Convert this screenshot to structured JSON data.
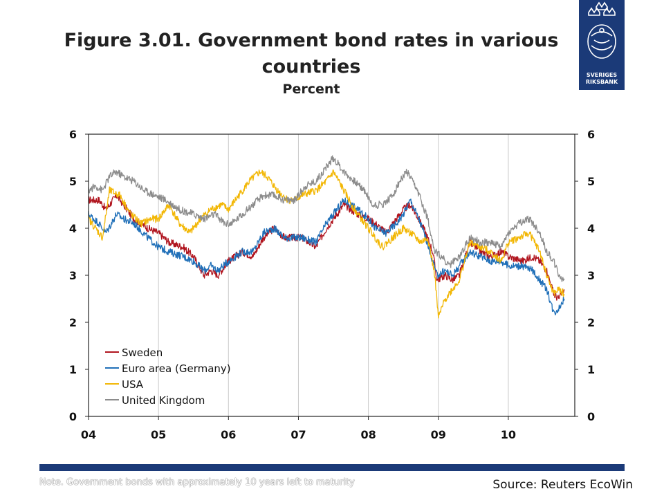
{
  "header": {
    "title": "Figure 3.01. Government bond rates in various countries",
    "subtitle": "Percent"
  },
  "logo": {
    "line1": "SVERIGES",
    "line2": "RIKSBANK"
  },
  "footer": {
    "note": "Note. Government bonds with approximately 10 years left to maturity",
    "source": "Source: Reuters EcoWin"
  },
  "chart_data": {
    "type": "line",
    "ylim": [
      0,
      6
    ],
    "y_ticks": [
      "0",
      "1",
      "2",
      "3",
      "4",
      "5",
      "6"
    ],
    "xlim": [
      2004.0,
      2010.95
    ],
    "x_ticks": [
      {
        "value": 2004,
        "label": "04"
      },
      {
        "value": 2005,
        "label": "05"
      },
      {
        "value": 2006,
        "label": "06"
      },
      {
        "value": 2007,
        "label": "07"
      },
      {
        "value": 2008,
        "label": "08"
      },
      {
        "value": 2009,
        "label": "09"
      },
      {
        "value": 2010,
        "label": "10"
      }
    ],
    "grid": "vertical",
    "legend_position": "bottom-left",
    "series": [
      {
        "name": "Sweden",
        "color": "#b0141e",
        "x": [
          2004.0,
          2004.15,
          2004.25,
          2004.4,
          2004.5,
          2004.65,
          2004.85,
          2005.0,
          2005.15,
          2005.35,
          2005.5,
          2005.65,
          2005.75,
          2005.85,
          2006.0,
          2006.2,
          2006.35,
          2006.5,
          2006.65,
          2006.8,
          2006.95,
          2007.05,
          2007.25,
          2007.4,
          2007.5,
          2007.65,
          2007.85,
          2008.0,
          2008.1,
          2008.25,
          2008.4,
          2008.5,
          2008.6,
          2008.72,
          2008.82,
          2008.92,
          2008.98,
          2009.1,
          2009.2,
          2009.3,
          2009.45,
          2009.6,
          2009.75,
          2009.9,
          2010.0,
          2010.2,
          2010.35,
          2010.45,
          2010.55,
          2010.65,
          2010.72,
          2010.8
        ],
        "y": [
          4.6,
          4.6,
          4.4,
          4.7,
          4.5,
          4.2,
          4.0,
          3.9,
          3.7,
          3.6,
          3.4,
          3.0,
          3.1,
          3.0,
          3.3,
          3.5,
          3.4,
          3.8,
          4.0,
          3.8,
          3.8,
          3.8,
          3.6,
          4.0,
          4.2,
          4.5,
          4.3,
          4.2,
          4.1,
          3.9,
          4.2,
          4.4,
          4.5,
          4.2,
          3.9,
          3.5,
          2.9,
          3.0,
          2.9,
          3.0,
          3.7,
          3.5,
          3.4,
          3.5,
          3.4,
          3.3,
          3.4,
          3.3,
          3.1,
          2.6,
          2.5,
          2.7
        ]
      },
      {
        "name": "Euro area (Germany)",
        "color": "#1f6fb8",
        "x": [
          2004.0,
          2004.15,
          2004.25,
          2004.4,
          2004.5,
          2004.65,
          2004.85,
          2005.0,
          2005.15,
          2005.35,
          2005.5,
          2005.65,
          2005.75,
          2005.85,
          2006.0,
          2006.2,
          2006.35,
          2006.5,
          2006.65,
          2006.8,
          2006.95,
          2007.05,
          2007.25,
          2007.4,
          2007.5,
          2007.65,
          2007.85,
          2008.0,
          2008.1,
          2008.25,
          2008.4,
          2008.5,
          2008.6,
          2008.72,
          2008.82,
          2008.92,
          2008.98,
          2009.1,
          2009.2,
          2009.3,
          2009.45,
          2009.6,
          2009.75,
          2009.9,
          2010.0,
          2010.2,
          2010.35,
          2010.45,
          2010.55,
          2010.65,
          2010.72,
          2010.8
        ],
        "y": [
          4.3,
          4.1,
          3.9,
          4.3,
          4.2,
          4.1,
          3.8,
          3.6,
          3.5,
          3.4,
          3.3,
          3.1,
          3.2,
          3.1,
          3.3,
          3.5,
          3.5,
          3.9,
          4.0,
          3.8,
          3.8,
          3.8,
          3.7,
          4.1,
          4.3,
          4.6,
          4.4,
          4.2,
          4.0,
          3.9,
          4.1,
          4.3,
          4.6,
          4.2,
          3.8,
          3.3,
          3.0,
          3.1,
          3.0,
          3.2,
          3.5,
          3.4,
          3.3,
          3.3,
          3.2,
          3.2,
          3.1,
          2.9,
          2.7,
          2.2,
          2.3,
          2.5
        ]
      },
      {
        "name": "USA",
        "color": "#f2b705",
        "x": [
          2004.0,
          2004.1,
          2004.2,
          2004.3,
          2004.45,
          2004.6,
          2004.75,
          2004.9,
          2005.0,
          2005.15,
          2005.3,
          2005.45,
          2005.6,
          2005.75,
          2005.9,
          2006.0,
          2006.15,
          2006.3,
          2006.45,
          2006.55,
          2006.7,
          2006.85,
          2006.95,
          2007.05,
          2007.25,
          2007.4,
          2007.5,
          2007.65,
          2007.8,
          2007.95,
          2008.05,
          2008.2,
          2008.35,
          2008.5,
          2008.6,
          2008.75,
          2008.85,
          2008.95,
          2009.0,
          2009.1,
          2009.2,
          2009.3,
          2009.45,
          2009.6,
          2009.75,
          2009.9,
          2010.0,
          2010.15,
          2010.3,
          2010.45,
          2010.55,
          2010.65,
          2010.72,
          2010.8
        ],
        "y": [
          4.2,
          4.0,
          3.8,
          4.8,
          4.7,
          4.3,
          4.1,
          4.2,
          4.2,
          4.5,
          4.1,
          3.9,
          4.2,
          4.4,
          4.5,
          4.4,
          4.7,
          5.0,
          5.2,
          5.1,
          4.8,
          4.6,
          4.6,
          4.7,
          4.8,
          5.0,
          5.2,
          4.8,
          4.4,
          4.1,
          3.9,
          3.6,
          3.8,
          4.0,
          3.9,
          3.7,
          3.8,
          3.0,
          2.1,
          2.5,
          2.7,
          2.9,
          3.7,
          3.6,
          3.5,
          3.3,
          3.7,
          3.8,
          3.9,
          3.5,
          3.0,
          2.6,
          2.7,
          2.6
        ]
      },
      {
        "name": "United Kingdom",
        "color": "#8c8c8c",
        "x": [
          2004.0,
          2004.1,
          2004.2,
          2004.3,
          2004.4,
          2004.5,
          2004.65,
          2004.8,
          2004.95,
          2005.1,
          2005.3,
          2005.5,
          2005.65,
          2005.8,
          2005.95,
          2006.05,
          2006.2,
          2006.35,
          2006.5,
          2006.65,
          2006.8,
          2006.95,
          2007.1,
          2007.25,
          2007.4,
          2007.5,
          2007.65,
          2007.8,
          2007.95,
          2008.05,
          2008.2,
          2008.35,
          2008.45,
          2008.55,
          2008.7,
          2008.85,
          2008.95,
          2009.05,
          2009.15,
          2009.3,
          2009.45,
          2009.6,
          2009.75,
          2009.9,
          2010.0,
          2010.15,
          2010.3,
          2010.45,
          2010.55,
          2010.65,
          2010.72,
          2010.8
        ],
        "y": [
          4.8,
          4.9,
          4.8,
          5.1,
          5.2,
          5.1,
          5.0,
          4.8,
          4.7,
          4.6,
          4.4,
          4.3,
          4.2,
          4.3,
          4.1,
          4.1,
          4.3,
          4.5,
          4.7,
          4.7,
          4.6,
          4.6,
          4.9,
          5.0,
          5.3,
          5.5,
          5.2,
          5.0,
          4.8,
          4.5,
          4.5,
          4.7,
          5.0,
          5.2,
          4.8,
          4.2,
          3.5,
          3.4,
          3.2,
          3.4,
          3.8,
          3.7,
          3.7,
          3.6,
          3.9,
          4.1,
          4.2,
          3.9,
          3.5,
          3.3,
          3.0,
          2.9
        ]
      }
    ]
  }
}
